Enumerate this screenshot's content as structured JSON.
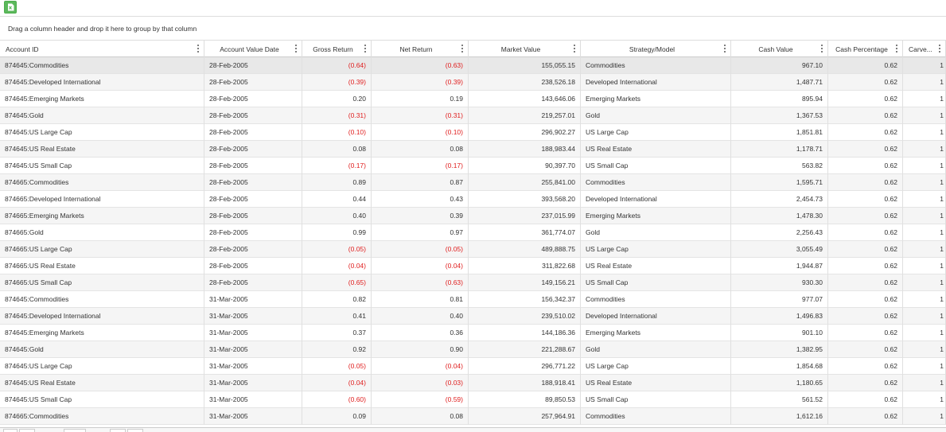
{
  "toolbar": {
    "export_icon": "excel-export-icon",
    "accent": "#5cb85c"
  },
  "group_panel": {
    "text": "Drag a column header and drop it here to group by that column"
  },
  "colors": {
    "negative": "#e02020"
  },
  "columns": [
    "Account ID",
    "Account Value Date",
    "Gross Return",
    "Net Return",
    "Market Value",
    "Strategy/Model",
    "Cash Value",
    "Cash Percentage",
    "Carve..."
  ],
  "rows": [
    {
      "id": "874645:Commodities",
      "date": "28-Feb-2005",
      "gross": "(0.64)",
      "net": "(0.63)",
      "mv": "155,055.15",
      "strategy": "Commodities",
      "cash": "967.10",
      "cashpct": "0.62",
      "carve": "1"
    },
    {
      "id": "874645:Developed International",
      "date": "28-Feb-2005",
      "gross": "(0.39)",
      "net": "(0.39)",
      "mv": "238,526.18",
      "strategy": "Developed International",
      "cash": "1,487.71",
      "cashpct": "0.62",
      "carve": "1"
    },
    {
      "id": "874645:Emerging Markets",
      "date": "28-Feb-2005",
      "gross": "0.20",
      "net": "0.19",
      "mv": "143,646.06",
      "strategy": "Emerging Markets",
      "cash": "895.94",
      "cashpct": "0.62",
      "carve": "1"
    },
    {
      "id": "874645:Gold",
      "date": "28-Feb-2005",
      "gross": "(0.31)",
      "net": "(0.31)",
      "mv": "219,257.01",
      "strategy": "Gold",
      "cash": "1,367.53",
      "cashpct": "0.62",
      "carve": "1"
    },
    {
      "id": "874645:US Large Cap",
      "date": "28-Feb-2005",
      "gross": "(0.10)",
      "net": "(0.10)",
      "mv": "296,902.27",
      "strategy": "US Large Cap",
      "cash": "1,851.81",
      "cashpct": "0.62",
      "carve": "1"
    },
    {
      "id": "874645:US Real Estate",
      "date": "28-Feb-2005",
      "gross": "0.08",
      "net": "0.08",
      "mv": "188,983.44",
      "strategy": "US Real Estate",
      "cash": "1,178.71",
      "cashpct": "0.62",
      "carve": "1"
    },
    {
      "id": "874645:US Small Cap",
      "date": "28-Feb-2005",
      "gross": "(0.17)",
      "net": "(0.17)",
      "mv": "90,397.70",
      "strategy": "US Small Cap",
      "cash": "563.82",
      "cashpct": "0.62",
      "carve": "1"
    },
    {
      "id": "874665:Commodities",
      "date": "28-Feb-2005",
      "gross": "0.89",
      "net": "0.87",
      "mv": "255,841.00",
      "strategy": "Commodities",
      "cash": "1,595.71",
      "cashpct": "0.62",
      "carve": "1"
    },
    {
      "id": "874665:Developed International",
      "date": "28-Feb-2005",
      "gross": "0.44",
      "net": "0.43",
      "mv": "393,568.20",
      "strategy": "Developed International",
      "cash": "2,454.73",
      "cashpct": "0.62",
      "carve": "1"
    },
    {
      "id": "874665:Emerging Markets",
      "date": "28-Feb-2005",
      "gross": "0.40",
      "net": "0.39",
      "mv": "237,015.99",
      "strategy": "Emerging Markets",
      "cash": "1,478.30",
      "cashpct": "0.62",
      "carve": "1"
    },
    {
      "id": "874665:Gold",
      "date": "28-Feb-2005",
      "gross": "0.99",
      "net": "0.97",
      "mv": "361,774.07",
      "strategy": "Gold",
      "cash": "2,256.43",
      "cashpct": "0.62",
      "carve": "1"
    },
    {
      "id": "874665:US Large Cap",
      "date": "28-Feb-2005",
      "gross": "(0.05)",
      "net": "(0.05)",
      "mv": "489,888.75",
      "strategy": "US Large Cap",
      "cash": "3,055.49",
      "cashpct": "0.62",
      "carve": "1"
    },
    {
      "id": "874665:US Real Estate",
      "date": "28-Feb-2005",
      "gross": "(0.04)",
      "net": "(0.04)",
      "mv": "311,822.68",
      "strategy": "US Real Estate",
      "cash": "1,944.87",
      "cashpct": "0.62",
      "carve": "1"
    },
    {
      "id": "874665:US Small Cap",
      "date": "28-Feb-2005",
      "gross": "(0.65)",
      "net": "(0.63)",
      "mv": "149,156.21",
      "strategy": "US Small Cap",
      "cash": "930.30",
      "cashpct": "0.62",
      "carve": "1"
    },
    {
      "id": "874645:Commodities",
      "date": "31-Mar-2005",
      "gross": "0.82",
      "net": "0.81",
      "mv": "156,342.37",
      "strategy": "Commodities",
      "cash": "977.07",
      "cashpct": "0.62",
      "carve": "1"
    },
    {
      "id": "874645:Developed International",
      "date": "31-Mar-2005",
      "gross": "0.41",
      "net": "0.40",
      "mv": "239,510.02",
      "strategy": "Developed International",
      "cash": "1,496.83",
      "cashpct": "0.62",
      "carve": "1"
    },
    {
      "id": "874645:Emerging Markets",
      "date": "31-Mar-2005",
      "gross": "0.37",
      "net": "0.36",
      "mv": "144,186.36",
      "strategy": "Emerging Markets",
      "cash": "901.10",
      "cashpct": "0.62",
      "carve": "1"
    },
    {
      "id": "874645:Gold",
      "date": "31-Mar-2005",
      "gross": "0.92",
      "net": "0.90",
      "mv": "221,288.67",
      "strategy": "Gold",
      "cash": "1,382.95",
      "cashpct": "0.62",
      "carve": "1"
    },
    {
      "id": "874645:US Large Cap",
      "date": "31-Mar-2005",
      "gross": "(0.05)",
      "net": "(0.04)",
      "mv": "296,771.22",
      "strategy": "US Large Cap",
      "cash": "1,854.68",
      "cashpct": "0.62",
      "carve": "1"
    },
    {
      "id": "874645:US Real Estate",
      "date": "31-Mar-2005",
      "gross": "(0.04)",
      "net": "(0.03)",
      "mv": "188,918.41",
      "strategy": "US Real Estate",
      "cash": "1,180.65",
      "cashpct": "0.62",
      "carve": "1"
    },
    {
      "id": "874645:US Small Cap",
      "date": "31-Mar-2005",
      "gross": "(0.60)",
      "net": "(0.59)",
      "mv": "89,850.53",
      "strategy": "US Small Cap",
      "cash": "561.52",
      "cashpct": "0.62",
      "carve": "1"
    },
    {
      "id": "874665:Commodities",
      "date": "31-Mar-2005",
      "gross": "0.09",
      "net": "0.08",
      "mv": "257,964.91",
      "strategy": "Commodities",
      "cash": "1,612.16",
      "cashpct": "0.62",
      "carve": "1"
    }
  ]
}
